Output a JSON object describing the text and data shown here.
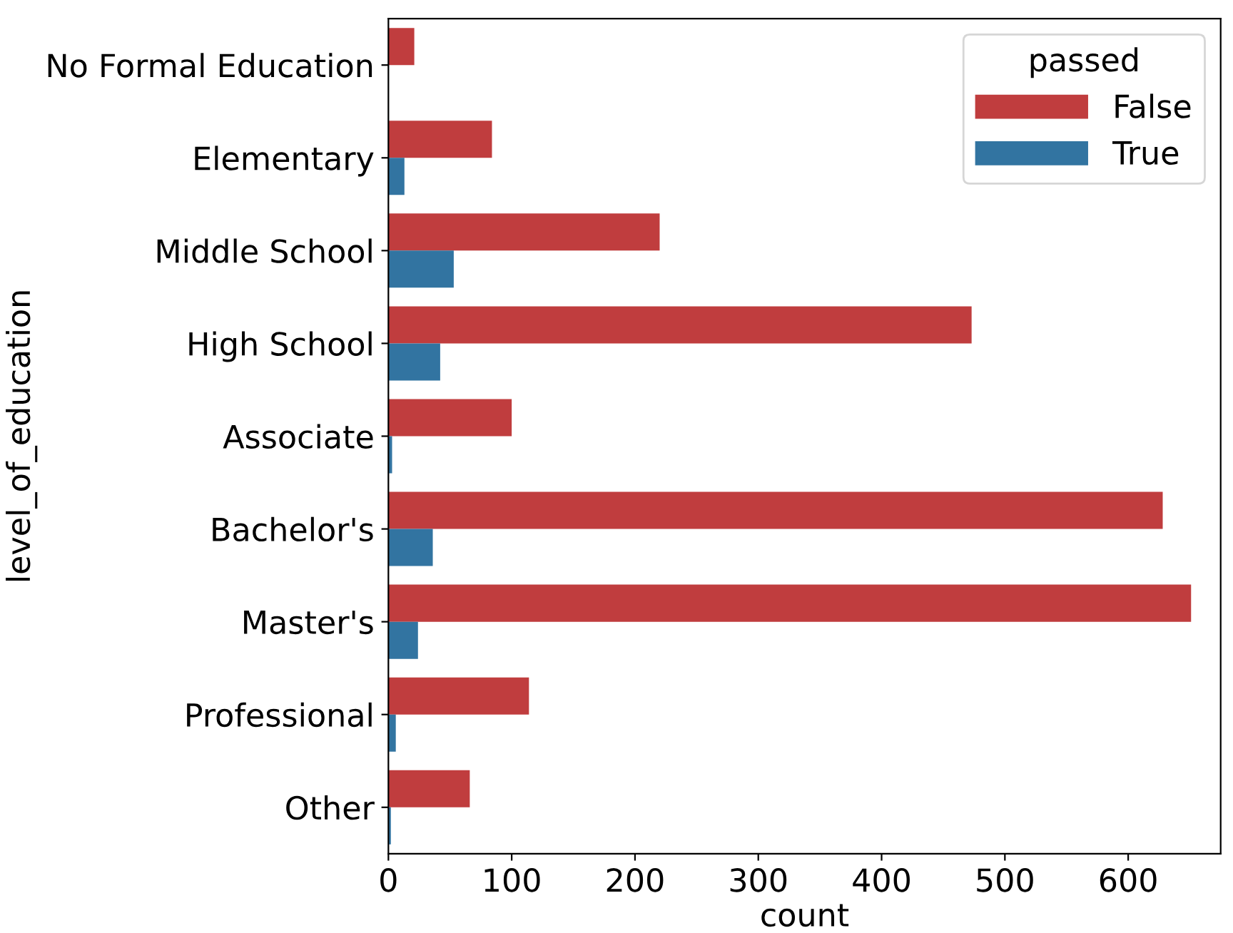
{
  "chart_data": {
    "type": "bar",
    "orientation": "horizontal",
    "xlabel": "count",
    "ylabel": "level_of_education",
    "legend_title": "passed",
    "categories": [
      "No Formal Education",
      "Elementary",
      "Middle School",
      "High School",
      "Associate",
      "Bachelor's",
      "Master's",
      "Professional",
      "Other"
    ],
    "series": [
      {
        "name": "False",
        "color": "#c03d3e",
        "values": [
          21,
          84,
          220,
          473,
          100,
          628,
          651,
          114,
          66
        ]
      },
      {
        "name": "True",
        "color": "#3274a1",
        "values": [
          0,
          13,
          53,
          42,
          3,
          36,
          24,
          6,
          2
        ]
      }
    ],
    "xlim": [
      0,
      675
    ],
    "xticks": [
      0,
      100,
      200,
      300,
      400,
      500,
      600
    ],
    "legend": "top right",
    "grid": false
  }
}
